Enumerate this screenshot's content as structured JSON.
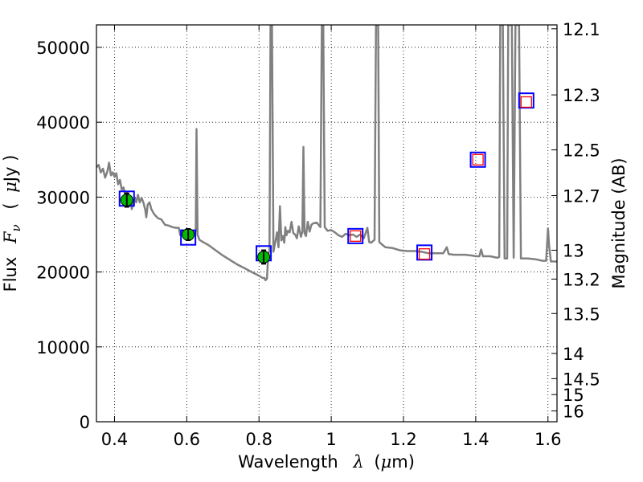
{
  "chart_data": {
    "type": "line",
    "title": "",
    "xlabel": "Wavelength",
    "xlabel_symbol": "λ",
    "xlabel_unit_open": "(",
    "xlabel_unit_mu": "μ",
    "xlabel_unit_rest": "m)",
    "ylabel": "Flux",
    "ylabel_symbol": "F",
    "ylabel_symbol_sub": "ν",
    "ylabel_unit_open": "(",
    "ylabel_unit_mu": "μ",
    "ylabel_unit_rest": "Jy )",
    "y2label": "Magnitude (AB)",
    "xlim": [
      0.35,
      1.625
    ],
    "ylim": [
      0,
      53000
    ],
    "grid": true,
    "x_ticks": [
      0.4,
      0.6,
      0.8,
      1.0,
      1.2,
      1.4,
      1.6
    ],
    "x_tick_labels": [
      "0.4",
      "0.6",
      "0.8",
      "1",
      "1.2",
      "1.4",
      "1.6"
    ],
    "y_ticks": [
      0,
      10000,
      20000,
      30000,
      40000,
      50000
    ],
    "y_tick_labels": [
      "0",
      "10000",
      "20000",
      "30000",
      "40000",
      "50000"
    ],
    "y2_ticks": [
      12.1,
      12.3,
      12.5,
      12.7,
      13,
      13.2,
      13.5,
      14,
      14.5,
      15,
      16
    ],
    "y2_tick_labels": [
      "12.1",
      "12.3",
      "12.5",
      "12.7",
      "13",
      "13.2",
      "13.5",
      "14",
      "14.5",
      "15",
      "16"
    ],
    "series": [
      {
        "kind": "spectrum",
        "color": "#808080",
        "points": [
          [
            0.35,
            34000
          ],
          [
            0.356,
            34300
          ],
          [
            0.362,
            33300
          ],
          [
            0.368,
            33800
          ],
          [
            0.374,
            32600
          ],
          [
            0.38,
            33400
          ],
          [
            0.385,
            34600
          ],
          [
            0.39,
            32900
          ],
          [
            0.395,
            33300
          ],
          [
            0.4,
            32700
          ],
          [
            0.405,
            33200
          ],
          [
            0.41,
            31700
          ],
          [
            0.415,
            32300
          ],
          [
            0.42,
            31000
          ],
          [
            0.425,
            31300
          ],
          [
            0.43,
            30200
          ],
          [
            0.435,
            30700
          ],
          [
            0.44,
            29900
          ],
          [
            0.445,
            29600
          ],
          [
            0.448,
            28400
          ],
          [
            0.452,
            29300
          ],
          [
            0.456,
            29900
          ],
          [
            0.46,
            29300
          ],
          [
            0.465,
            30300
          ],
          [
            0.47,
            29300
          ],
          [
            0.475,
            29900
          ],
          [
            0.48,
            29300
          ],
          [
            0.485,
            28300
          ],
          [
            0.488,
            27300
          ],
          [
            0.492,
            29000
          ],
          [
            0.497,
            29300
          ],
          [
            0.502,
            28400
          ],
          [
            0.51,
            27700
          ],
          [
            0.52,
            27200
          ],
          [
            0.53,
            27000
          ],
          [
            0.54,
            26300
          ],
          [
            0.55,
            26200
          ],
          [
            0.56,
            26000
          ],
          [
            0.57,
            25900
          ],
          [
            0.578,
            25900
          ],
          [
            0.582,
            24900
          ],
          [
            0.586,
            25600
          ],
          [
            0.595,
            25400
          ],
          [
            0.605,
            25400
          ],
          [
            0.615,
            25200
          ],
          [
            0.622,
            25200
          ],
          [
            0.625,
            25600
          ],
          [
            0.627,
            39100
          ],
          [
            0.63,
            25000
          ],
          [
            0.635,
            24300
          ],
          [
            0.645,
            24000
          ],
          [
            0.66,
            23600
          ],
          [
            0.68,
            22900
          ],
          [
            0.7,
            22200
          ],
          [
            0.72,
            21600
          ],
          [
            0.74,
            21000
          ],
          [
            0.76,
            20500
          ],
          [
            0.78,
            20000
          ],
          [
            0.8,
            19500
          ],
          [
            0.81,
            19200
          ],
          [
            0.815,
            19200
          ],
          [
            0.818,
            18900
          ],
          [
            0.822,
            19100
          ],
          [
            0.826,
            22500
          ],
          [
            0.829,
            22800
          ],
          [
            0.832,
            53000
          ],
          [
            0.836,
            53000
          ],
          [
            0.84,
            22700
          ],
          [
            0.845,
            24000
          ],
          [
            0.85,
            25300
          ],
          [
            0.854,
            23300
          ],
          [
            0.858,
            28800
          ],
          [
            0.862,
            24200
          ],
          [
            0.866,
            24800
          ],
          [
            0.87,
            23900
          ],
          [
            0.873,
            26000
          ],
          [
            0.876,
            24900
          ],
          [
            0.88,
            25500
          ],
          [
            0.885,
            25300
          ],
          [
            0.89,
            26700
          ],
          [
            0.895,
            25200
          ],
          [
            0.9,
            25000
          ],
          [
            0.905,
            24500
          ],
          [
            0.91,
            26100
          ],
          [
            0.916,
            24700
          ],
          [
            0.92,
            25400
          ],
          [
            0.923,
            36700
          ],
          [
            0.926,
            25200
          ],
          [
            0.93,
            24800
          ],
          [
            0.935,
            26700
          ],
          [
            0.94,
            25400
          ],
          [
            0.945,
            26300
          ],
          [
            0.95,
            26500
          ],
          [
            0.96,
            26600
          ],
          [
            0.97,
            26000
          ],
          [
            0.974,
            53000
          ],
          [
            0.978,
            53000
          ],
          [
            0.982,
            26000
          ],
          [
            0.99,
            25500
          ],
          [
            1.0,
            25600
          ],
          [
            1.01,
            25300
          ],
          [
            1.02,
            24900
          ],
          [
            1.03,
            24700
          ],
          [
            1.04,
            25100
          ],
          [
            1.05,
            24900
          ],
          [
            1.06,
            25000
          ],
          [
            1.07,
            24700
          ],
          [
            1.08,
            25000
          ],
          [
            1.09,
            24500
          ],
          [
            1.1,
            25900
          ],
          [
            1.105,
            24000
          ],
          [
            1.11,
            23900
          ],
          [
            1.12,
            24300
          ],
          [
            1.124,
            53000
          ],
          [
            1.13,
            53000
          ],
          [
            1.133,
            24000
          ],
          [
            1.14,
            23700
          ],
          [
            1.15,
            23300
          ],
          [
            1.17,
            23200
          ],
          [
            1.19,
            22900
          ],
          [
            1.21,
            22800
          ],
          [
            1.23,
            22800
          ],
          [
            1.25,
            22700
          ],
          [
            1.27,
            22500
          ],
          [
            1.29,
            22500
          ],
          [
            1.31,
            22500
          ],
          [
            1.32,
            23300
          ],
          [
            1.325,
            22400
          ],
          [
            1.34,
            22300
          ],
          [
            1.37,
            22300
          ],
          [
            1.39,
            22200
          ],
          [
            1.4,
            22100
          ],
          [
            1.41,
            22100
          ],
          [
            1.415,
            23000
          ],
          [
            1.42,
            22100
          ],
          [
            1.44,
            22100
          ],
          [
            1.46,
            21900
          ],
          [
            1.465,
            22000
          ],
          [
            1.468,
            53000
          ],
          [
            1.475,
            53000
          ],
          [
            1.48,
            21800
          ],
          [
            1.487,
            21800
          ],
          [
            1.49,
            53000
          ],
          [
            1.5,
            53000
          ],
          [
            1.505,
            21900
          ],
          [
            1.51,
            53000
          ],
          [
            1.52,
            53000
          ],
          [
            1.525,
            21800
          ],
          [
            1.545,
            21800
          ],
          [
            1.565,
            21700
          ],
          [
            1.585,
            21500
          ],
          [
            1.595,
            21500
          ],
          [
            1.6,
            25800
          ],
          [
            1.603,
            23600
          ],
          [
            1.608,
            21400
          ],
          [
            1.625,
            21400
          ]
        ]
      },
      {
        "kind": "observed",
        "color": "#00bb00",
        "points": [
          {
            "x": 0.434,
            "y": 29600,
            "err": 900
          },
          {
            "x": 0.604,
            "y": 25000,
            "err": 750
          },
          {
            "x": 0.813,
            "y": 22000,
            "err": 900
          }
        ]
      },
      {
        "kind": "model-blue-squares",
        "color": "#0000ff",
        "points": [
          {
            "x": 0.434,
            "y": 29800
          },
          {
            "x": 0.604,
            "y": 24600
          },
          {
            "x": 0.813,
            "y": 22500
          },
          {
            "x": 1.067,
            "y": 24800
          },
          {
            "x": 1.258,
            "y": 22600
          },
          {
            "x": 1.406,
            "y": 35000
          },
          {
            "x": 1.54,
            "y": 42900
          }
        ]
      },
      {
        "kind": "model-red-squares",
        "color": "#ff0000",
        "points": [
          {
            "x": 1.067,
            "y": 24800
          },
          {
            "x": 1.258,
            "y": 22400
          },
          {
            "x": 1.406,
            "y": 35000
          },
          {
            "x": 1.54,
            "y": 42700
          }
        ]
      }
    ]
  }
}
